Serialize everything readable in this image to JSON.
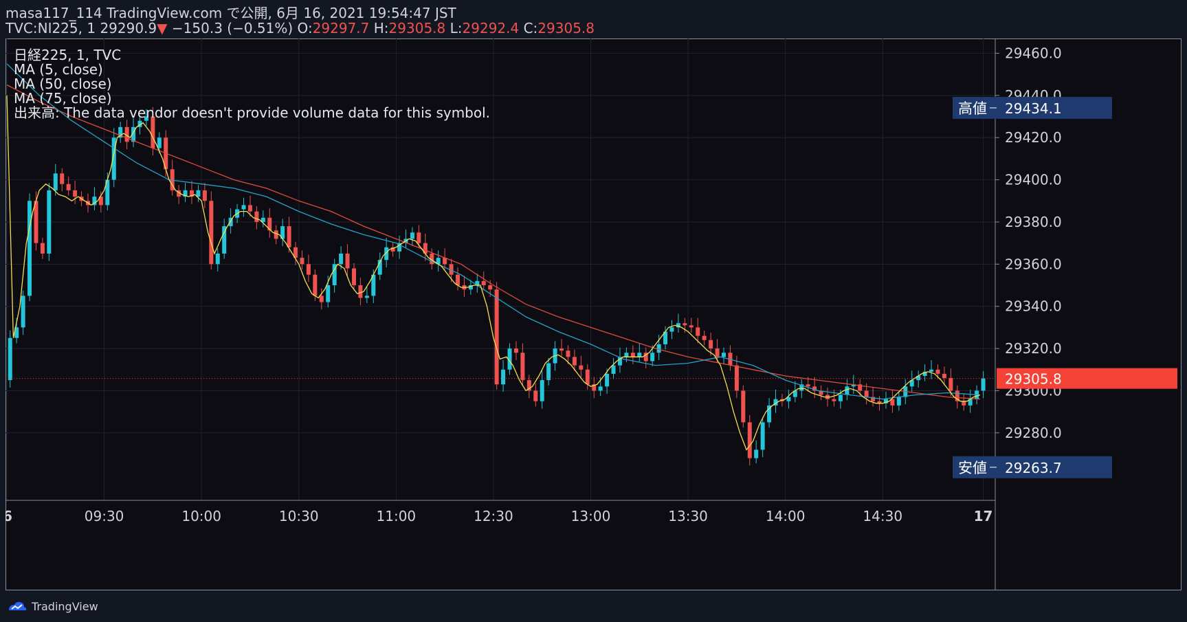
{
  "header": {
    "line1": "masa117_114 TradingView.com で公開, 6月 16, 2021 19:54:47 JST",
    "symbol": "TVC:NI225, 1",
    "last": "29290.9",
    "change": "−150.3 (−0.51%)",
    "o_label": "O:",
    "o": "29297.7",
    "h_label": "H:",
    "h": "29305.8",
    "l_label": "L:",
    "l": "29292.4",
    "c_label": "C:",
    "c": "29305.8"
  },
  "legend": {
    "title": "日経225, 1, TVC",
    "ma5": "MA (5, close)",
    "ma50": "MA (50, close)",
    "ma75": "MA (75, close)",
    "volume": "出来高: The data vendor doesn't provide volume data for this symbol."
  },
  "footer": {
    "brand": "TradingView"
  },
  "colors": {
    "up": "#26c6da",
    "down": "#ef5350",
    "ma5": "#f5e050",
    "ma50": "#26a3c6",
    "ma75": "#e04b3f",
    "badge": "#1e3a6e",
    "current": "#f44336"
  },
  "chart_data": {
    "type": "candlestick",
    "ylim": [
      29248,
      29467
    ],
    "yticks": [
      "29460.0",
      "29440.0",
      "29420.0",
      "29400.0",
      "29380.0",
      "29360.0",
      "29340.0",
      "29320.0",
      "29300.0",
      "29280.0"
    ],
    "xticks": [
      {
        "label": "6",
        "t": 0
      },
      {
        "label": "09:30",
        "t": 30
      },
      {
        "label": "10:00",
        "t": 60
      },
      {
        "label": "10:30",
        "t": 90
      },
      {
        "label": "11:00",
        "t": 120
      },
      {
        "label": "12:30",
        "t": 150
      },
      {
        "label": "13:00",
        "t": 180
      },
      {
        "label": "13:30",
        "t": 210
      },
      {
        "label": "14:00",
        "t": 240
      },
      {
        "label": "14:30",
        "t": 270
      },
      {
        "label": "17",
        "t": 301
      }
    ],
    "t_range": [
      0,
      303
    ],
    "current": {
      "label": "29305.8",
      "value": 29305.8
    },
    "high_marker": {
      "label": "高値",
      "value_label": "29434.1",
      "value": 29434.1
    },
    "low_marker": {
      "label": "安値",
      "value_label": "29263.7",
      "value": 29263.7
    },
    "series_close": [
      [
        0,
        29305
      ],
      [
        1,
        29325
      ],
      [
        3,
        29330
      ],
      [
        5,
        29345
      ],
      [
        7,
        29390
      ],
      [
        9,
        29370
      ],
      [
        11,
        29365
      ],
      [
        13,
        29395
      ],
      [
        15,
        29403
      ],
      [
        17,
        29398
      ],
      [
        19,
        29395
      ],
      [
        21,
        29392
      ],
      [
        23,
        29390
      ],
      [
        25,
        29388
      ],
      [
        27,
        29392
      ],
      [
        29,
        29388
      ],
      [
        31,
        29400
      ],
      [
        33,
        29420
      ],
      [
        35,
        29425
      ],
      [
        37,
        29418
      ],
      [
        39,
        29425
      ],
      [
        41,
        29428
      ],
      [
        43,
        29430
      ],
      [
        45,
        29415
      ],
      [
        47,
        29420
      ],
      [
        49,
        29405
      ],
      [
        51,
        29395
      ],
      [
        53,
        29392
      ],
      [
        55,
        29395
      ],
      [
        57,
        29392
      ],
      [
        59,
        29395
      ],
      [
        61,
        29390
      ],
      [
        63,
        29360
      ],
      [
        65,
        29365
      ],
      [
        67,
        29378
      ],
      [
        69,
        29382
      ],
      [
        71,
        29386
      ],
      [
        73,
        29388
      ],
      [
        75,
        29385
      ],
      [
        77,
        29380
      ],
      [
        79,
        29382
      ],
      [
        81,
        29376
      ],
      [
        83,
        29372
      ],
      [
        85,
        29378
      ],
      [
        87,
        29368
      ],
      [
        89,
        29363
      ],
      [
        91,
        29360
      ],
      [
        93,
        29355
      ],
      [
        95,
        29345
      ],
      [
        97,
        29342
      ],
      [
        99,
        29350
      ],
      [
        101,
        29360
      ],
      [
        103,
        29365
      ],
      [
        105,
        29358
      ],
      [
        107,
        29350
      ],
      [
        109,
        29344
      ],
      [
        111,
        29345
      ],
      [
        113,
        29355
      ],
      [
        115,
        29362
      ],
      [
        117,
        29368
      ],
      [
        119,
        29366
      ],
      [
        121,
        29370
      ],
      [
        123,
        29372
      ],
      [
        125,
        29375
      ],
      [
        127,
        29370
      ],
      [
        129,
        29365
      ],
      [
        131,
        29360
      ],
      [
        133,
        29363
      ],
      [
        135,
        29360
      ],
      [
        137,
        29355
      ],
      [
        139,
        29350
      ],
      [
        141,
        29348
      ],
      [
        143,
        29350
      ],
      [
        145,
        29352
      ],
      [
        147,
        29350
      ],
      [
        149,
        29348
      ],
      [
        151,
        29303
      ],
      [
        153,
        29310
      ],
      [
        155,
        29320
      ],
      [
        157,
        29318
      ],
      [
        159,
        29305
      ],
      [
        161,
        29300
      ],
      [
        163,
        29295
      ],
      [
        165,
        29305
      ],
      [
        167,
        29313
      ],
      [
        169,
        29320
      ],
      [
        171,
        29319
      ],
      [
        173,
        29316
      ],
      [
        175,
        29312
      ],
      [
        177,
        29310
      ],
      [
        179,
        29303
      ],
      [
        181,
        29300
      ],
      [
        183,
        29302
      ],
      [
        185,
        29308
      ],
      [
        187,
        29312
      ],
      [
        189,
        29316
      ],
      [
        191,
        29318
      ],
      [
        193,
        29316
      ],
      [
        195,
        29318
      ],
      [
        197,
        29314
      ],
      [
        199,
        29318
      ],
      [
        201,
        29322
      ],
      [
        203,
        29328
      ],
      [
        205,
        29330
      ],
      [
        207,
        29332
      ],
      [
        209,
        29331
      ],
      [
        211,
        29330
      ],
      [
        213,
        29326
      ],
      [
        215,
        29324
      ],
      [
        217,
        29320
      ],
      [
        219,
        29316
      ],
      [
        221,
        29318
      ],
      [
        223,
        29312
      ],
      [
        225,
        29300
      ],
      [
        227,
        29285
      ],
      [
        229,
        29268
      ],
      [
        231,
        29272
      ],
      [
        233,
        29285
      ],
      [
        235,
        29293
      ],
      [
        237,
        29296
      ],
      [
        239,
        29295
      ],
      [
        241,
        29297
      ],
      [
        243,
        29300
      ],
      [
        245,
        29303
      ],
      [
        247,
        29302
      ],
      [
        249,
        29300
      ],
      [
        251,
        29298
      ],
      [
        253,
        29296
      ],
      [
        255,
        29295
      ],
      [
        257,
        29298
      ],
      [
        259,
        29302
      ],
      [
        261,
        29303
      ],
      [
        263,
        29300
      ],
      [
        265,
        29297
      ],
      [
        267,
        29295
      ],
      [
        269,
        29294
      ],
      [
        271,
        29296
      ],
      [
        273,
        29293
      ],
      [
        275,
        29297
      ],
      [
        277,
        29302
      ],
      [
        279,
        29305
      ],
      [
        281,
        29307
      ],
      [
        283,
        29309
      ],
      [
        285,
        29310
      ],
      [
        287,
        29308
      ],
      [
        289,
        29306
      ],
      [
        291,
        29300
      ],
      [
        293,
        29295
      ],
      [
        295,
        29293
      ],
      [
        297,
        29296
      ],
      [
        299,
        29300
      ],
      [
        301,
        29305.8
      ]
    ],
    "series_ma5": [
      [
        0,
        29440
      ],
      [
        2,
        29325
      ],
      [
        4,
        29340
      ],
      [
        6,
        29370
      ],
      [
        8,
        29385
      ],
      [
        10,
        29395
      ],
      [
        12,
        29398
      ],
      [
        14,
        29396
      ],
      [
        16,
        29393
      ],
      [
        18,
        29392
      ],
      [
        20,
        29390
      ],
      [
        22,
        29392
      ],
      [
        24,
        29390
      ],
      [
        26,
        29388
      ],
      [
        28,
        29390
      ],
      [
        30,
        29395
      ],
      [
        32,
        29405
      ],
      [
        34,
        29420
      ],
      [
        36,
        29422
      ],
      [
        38,
        29420
      ],
      [
        40,
        29425
      ],
      [
        42,
        29427
      ],
      [
        44,
        29423
      ],
      [
        46,
        29417
      ],
      [
        48,
        29410
      ],
      [
        50,
        29400
      ],
      [
        52,
        29395
      ],
      [
        54,
        29393
      ],
      [
        56,
        29392
      ],
      [
        58,
        29393
      ],
      [
        60,
        29390
      ],
      [
        62,
        29375
      ],
      [
        64,
        29365
      ],
      [
        66,
        29372
      ],
      [
        68,
        29378
      ],
      [
        70,
        29383
      ],
      [
        72,
        29385
      ],
      [
        74,
        29385
      ],
      [
        76,
        29382
      ],
      [
        78,
        29381
      ],
      [
        80,
        29378
      ],
      [
        82,
        29375
      ],
      [
        84,
        29374
      ],
      [
        86,
        29370
      ],
      [
        88,
        29365
      ],
      [
        90,
        29360
      ],
      [
        92,
        29352
      ],
      [
        94,
        29346
      ],
      [
        96,
        29344
      ],
      [
        98,
        29348
      ],
      [
        100,
        29355
      ],
      [
        102,
        29360
      ],
      [
        104,
        29358
      ],
      [
        106,
        29350
      ],
      [
        108,
        29346
      ],
      [
        110,
        29347
      ],
      [
        112,
        29352
      ],
      [
        114,
        29358
      ],
      [
        116,
        29364
      ],
      [
        118,
        29367
      ],
      [
        120,
        29368
      ],
      [
        122,
        29370
      ],
      [
        124,
        29372
      ],
      [
        126,
        29371
      ],
      [
        128,
        29367
      ],
      [
        130,
        29363
      ],
      [
        132,
        29361
      ],
      [
        134,
        29359
      ],
      [
        136,
        29355
      ],
      [
        138,
        29351
      ],
      [
        140,
        29349
      ],
      [
        142,
        29349
      ],
      [
        144,
        29350
      ],
      [
        146,
        29350
      ],
      [
        148,
        29340
      ],
      [
        150,
        29325
      ],
      [
        152,
        29315
      ],
      [
        154,
        29316
      ],
      [
        156,
        29312
      ],
      [
        158,
        29305
      ],
      [
        160,
        29300
      ],
      [
        162,
        29302
      ],
      [
        164,
        29307
      ],
      [
        166,
        29313
      ],
      [
        168,
        29316
      ],
      [
        170,
        29317
      ],
      [
        172,
        29315
      ],
      [
        174,
        29312
      ],
      [
        176,
        29308
      ],
      [
        178,
        29304
      ],
      [
        180,
        29302
      ],
      [
        182,
        29303
      ],
      [
        184,
        29307
      ],
      [
        186,
        29311
      ],
      [
        188,
        29314
      ],
      [
        190,
        29316
      ],
      [
        192,
        29316
      ],
      [
        194,
        29316
      ],
      [
        196,
        29316
      ],
      [
        198,
        29318
      ],
      [
        200,
        29322
      ],
      [
        202,
        29326
      ],
      [
        204,
        29330
      ],
      [
        206,
        29331
      ],
      [
        208,
        29330
      ],
      [
        210,
        29328
      ],
      [
        212,
        29325
      ],
      [
        214,
        29322
      ],
      [
        216,
        29319
      ],
      [
        218,
        29317
      ],
      [
        220,
        29312
      ],
      [
        222,
        29302
      ],
      [
        224,
        29290
      ],
      [
        226,
        29280
      ],
      [
        228,
        29272
      ],
      [
        230,
        29276
      ],
      [
        232,
        29284
      ],
      [
        234,
        29290
      ],
      [
        236,
        29293
      ],
      [
        238,
        29295
      ],
      [
        240,
        29296
      ],
      [
        242,
        29299
      ],
      [
        244,
        29301
      ],
      [
        246,
        29301
      ],
      [
        248,
        29299
      ],
      [
        250,
        29298
      ],
      [
        252,
        29297
      ],
      [
        254,
        29297
      ],
      [
        256,
        29298
      ],
      [
        258,
        29300
      ],
      [
        260,
        29301
      ],
      [
        262,
        29300
      ],
      [
        264,
        29297
      ],
      [
        266,
        29295
      ],
      [
        268,
        29294
      ],
      [
        270,
        29294
      ],
      [
        272,
        29295
      ],
      [
        274,
        29298
      ],
      [
        276,
        29301
      ],
      [
        278,
        29304
      ],
      [
        280,
        29306
      ],
      [
        282,
        29308
      ],
      [
        284,
        29309
      ],
      [
        286,
        29308
      ],
      [
        288,
        29305
      ],
      [
        290,
        29301
      ],
      [
        292,
        29297
      ],
      [
        294,
        29295
      ],
      [
        296,
        29295
      ],
      [
        298,
        29297
      ],
      [
        300,
        29298
      ]
    ],
    "series_ma50": [
      [
        0,
        29455
      ],
      [
        10,
        29440
      ],
      [
        20,
        29428
      ],
      [
        30,
        29418
      ],
      [
        40,
        29408
      ],
      [
        50,
        29400
      ],
      [
        60,
        29398
      ],
      [
        70,
        29396
      ],
      [
        80,
        29392
      ],
      [
        90,
        29385
      ],
      [
        100,
        29379
      ],
      [
        110,
        29374
      ],
      [
        120,
        29370
      ],
      [
        130,
        29362
      ],
      [
        140,
        29355
      ],
      [
        150,
        29345
      ],
      [
        160,
        29335
      ],
      [
        170,
        29328
      ],
      [
        180,
        29322
      ],
      [
        190,
        29315
      ],
      [
        200,
        29312
      ],
      [
        210,
        29313
      ],
      [
        220,
        29316
      ],
      [
        230,
        29312
      ],
      [
        240,
        29305
      ],
      [
        250,
        29300
      ],
      [
        260,
        29298
      ],
      [
        270,
        29296
      ],
      [
        280,
        29298
      ],
      [
        290,
        29299
      ],
      [
        300,
        29298
      ]
    ],
    "series_ma75": [
      [
        0,
        29445
      ],
      [
        10,
        29437
      ],
      [
        20,
        29430
      ],
      [
        30,
        29424
      ],
      [
        40,
        29418
      ],
      [
        50,
        29412
      ],
      [
        60,
        29406
      ],
      [
        70,
        29400
      ],
      [
        80,
        29396
      ],
      [
        90,
        29390
      ],
      [
        100,
        29385
      ],
      [
        110,
        29378
      ],
      [
        120,
        29372
      ],
      [
        130,
        29366
      ],
      [
        140,
        29360
      ],
      [
        150,
        29350
      ],
      [
        160,
        29341
      ],
      [
        170,
        29335
      ],
      [
        180,
        29330
      ],
      [
        190,
        29325
      ],
      [
        200,
        29320
      ],
      [
        210,
        29316
      ],
      [
        220,
        29313
      ],
      [
        230,
        29310
      ],
      [
        240,
        29307
      ],
      [
        250,
        29305
      ],
      [
        260,
        29303
      ],
      [
        270,
        29301
      ],
      [
        280,
        29299
      ],
      [
        290,
        29297
      ],
      [
        300,
        29296
      ]
    ]
  }
}
